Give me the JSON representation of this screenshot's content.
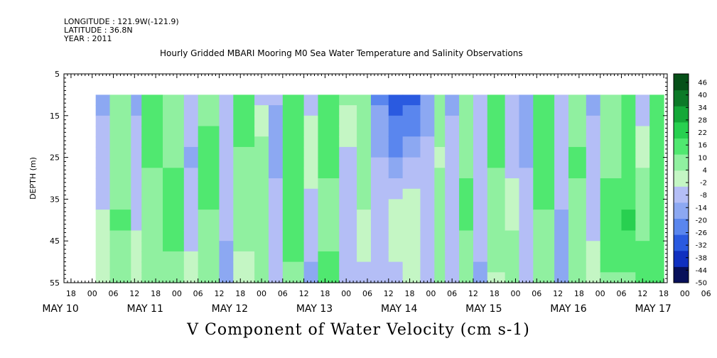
{
  "header": {
    "longitude": "LONGITUDE : 121.9W(-121.9)",
    "latitude": "LATITUDE : 36.8N",
    "year": "YEAR : 2011"
  },
  "chart_data": {
    "type": "heatmap",
    "title": "Hourly Gridded MBARI Mooring M0 Sea Water Temperature and Salinity Observations",
    "xlabel": "V Component of Water Velocity (cm s-1)",
    "ylabel": "DEPTH (m)",
    "x_tick_labels": [
      "18",
      "00",
      "06",
      "12",
      "18",
      "00",
      "06",
      "12",
      "18",
      "00",
      "06",
      "12",
      "18",
      "00",
      "06",
      "12",
      "18",
      "00",
      "06",
      "12",
      "18",
      "00",
      "06",
      "12",
      "18",
      "00",
      "06",
      "12",
      "18",
      "00",
      "06",
      "12",
      "18"
    ],
    "x_day_labels": [
      "MAY 10",
      "MAY 11",
      "MAY 12",
      "MAY 13",
      "MAY 14",
      "MAY 15",
      "MAY 16",
      "MAY 17"
    ],
    "x_range_hours": [
      -8,
      163
    ],
    "data_start_hour": 1,
    "y_ticks": [
      5,
      15,
      25,
      35,
      45,
      55
    ],
    "ylim": [
      5,
      55
    ],
    "depth_top": 10,
    "colorbar_labels": [
      "46",
      "40",
      "34",
      "28",
      "22",
      "16",
      "10",
      "4",
      "-2",
      "-8",
      "-14",
      "-20",
      "-26",
      "-32",
      "-38",
      "-44",
      "-50"
    ],
    "colorbar_range": [
      -50,
      52
    ],
    "colormap": [
      "#08105a",
      "#1030c0",
      "#2a5ae0",
      "#5a86ee",
      "#8ca8f2",
      "#b4bef6",
      "#c4f6c4",
      "#90f0a0",
      "#50e870",
      "#28d050",
      "#14a838",
      "#0c7a28",
      "#065018"
    ],
    "bands": [
      {
        "h0": 1,
        "h1": 5,
        "v": [
          -14,
          -6,
          -2,
          4
        ]
      },
      {
        "h0": 5,
        "h1": 11,
        "v": [
          12,
          6,
          14,
          8
        ]
      },
      {
        "h0": 11,
        "h1": 14,
        "v": [
          -12,
          -8,
          -4,
          2
        ]
      },
      {
        "h0": 14,
        "h1": 20,
        "v": [
          16,
          14,
          8,
          6
        ]
      },
      {
        "h0": 20,
        "h1": 26,
        "v": [
          8,
          12,
          16,
          10
        ]
      },
      {
        "h0": 26,
        "h1": 30,
        "v": [
          -6,
          -12,
          -4,
          -2
        ]
      },
      {
        "h0": 30,
        "h1": 36,
        "v": [
          10,
          16,
          12,
          6
        ]
      },
      {
        "h0": 36,
        "h1": 40,
        "v": [
          -8,
          -4,
          -10,
          -12
        ]
      },
      {
        "h0": 40,
        "h1": 46,
        "v": [
          18,
          12,
          6,
          4
        ]
      },
      {
        "h0": 46,
        "h1": 50,
        "v": [
          -4,
          8,
          12,
          6
        ]
      },
      {
        "h0": 50,
        "h1": 54,
        "v": [
          -10,
          -14,
          -6,
          -8
        ]
      },
      {
        "h0": 54,
        "h1": 60,
        "v": [
          14,
          18,
          20,
          10
        ]
      },
      {
        "h0": 60,
        "h1": 64,
        "v": [
          -6,
          2,
          -8,
          -12
        ]
      },
      {
        "h0": 64,
        "h1": 70,
        "v": [
          20,
          14,
          10,
          16
        ]
      },
      {
        "h0": 70,
        "h1": 75,
        "v": [
          6,
          -4,
          -8,
          -10
        ]
      },
      {
        "h0": 75,
        "h1": 79,
        "v": [
          12,
          8,
          4,
          -6
        ]
      },
      {
        "h0": 79,
        "h1": 84,
        "v": [
          -20,
          -10,
          -6,
          -4
        ]
      },
      {
        "h0": 84,
        "h1": 88,
        "v": [
          -30,
          -18,
          4,
          -6
        ]
      },
      {
        "h0": 88,
        "h1": 93,
        "v": [
          -28,
          -12,
          4,
          2
        ]
      },
      {
        "h0": 93,
        "h1": 97,
        "v": [
          -16,
          -8,
          -6,
          -4
        ]
      },
      {
        "h0": 97,
        "h1": 100,
        "v": [
          10,
          4,
          8,
          12
        ]
      },
      {
        "h0": 100,
        "h1": 104,
        "v": [
          -14,
          -6,
          -8,
          -4
        ]
      },
      {
        "h0": 104,
        "h1": 108,
        "v": [
          6,
          12,
          14,
          8
        ]
      },
      {
        "h0": 108,
        "h1": 112,
        "v": [
          -6,
          -10,
          -8,
          -12
        ]
      },
      {
        "h0": 112,
        "h1": 117,
        "v": [
          18,
          14,
          8,
          4
        ]
      },
      {
        "h0": 117,
        "h1": 121,
        "v": [
          -10,
          -6,
          4,
          10
        ]
      },
      {
        "h0": 121,
        "h1": 125,
        "v": [
          -16,
          -12,
          -6,
          -8
        ]
      },
      {
        "h0": 125,
        "h1": 131,
        "v": [
          14,
          20,
          12,
          8
        ]
      },
      {
        "h0": 131,
        "h1": 135,
        "v": [
          -8,
          -4,
          -12,
          -14
        ]
      },
      {
        "h0": 135,
        "h1": 140,
        "v": [
          8,
          14,
          10,
          6
        ]
      },
      {
        "h0": 140,
        "h1": 144,
        "v": [
          -12,
          -8,
          -6,
          4
        ]
      },
      {
        "h0": 144,
        "h1": 150,
        "v": [
          6,
          10,
          18,
          12
        ]
      },
      {
        "h0": 150,
        "h1": 154,
        "v": [
          16,
          14,
          22,
          10
        ]
      },
      {
        "h0": 154,
        "h1": 158,
        "v": [
          -8,
          4,
          12,
          14
        ]
      },
      {
        "h0": 158,
        "h1": 162,
        "v": [
          16,
          20,
          14,
          18
        ]
      }
    ]
  }
}
